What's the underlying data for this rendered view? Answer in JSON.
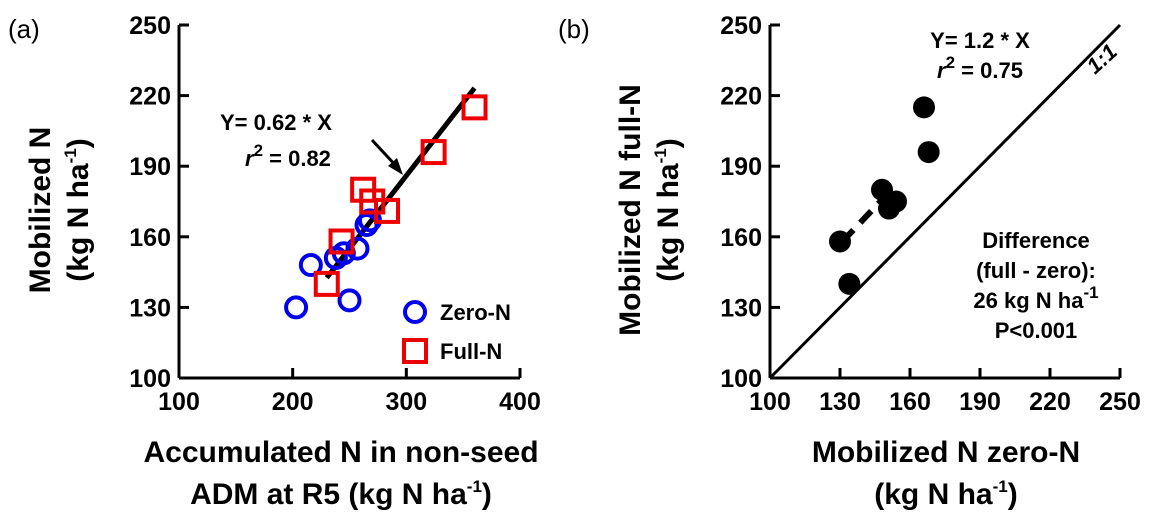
{
  "chart_data": [
    {
      "type": "scatter",
      "panel_label": "(a)",
      "xlabel_line1": "Accumulated N in non-seed",
      "xlabel_line2_pre": "ADM at R5 (kg N ha",
      "xlabel_line2_sup": "-1",
      "xlabel_line2_post": ")",
      "ylabel_line1": "Mobilized N",
      "ylabel_line2_pre": "(kg N ha",
      "ylabel_line2_sup": "-1",
      "ylabel_line2_post": ")",
      "xlim": [
        100,
        400
      ],
      "ylim": [
        100,
        250
      ],
      "xticks": [
        "100",
        "200",
        "300",
        "400"
      ],
      "yticks": [
        "100",
        "130",
        "160",
        "190",
        "220",
        "250"
      ],
      "series": [
        {
          "name": "Zero-N",
          "marker": "open-circle",
          "color": "#0000ee",
          "x": [
            203,
            216,
            238,
            245,
            250,
            257,
            265,
            268
          ],
          "y": [
            130,
            148,
            151,
            153,
            133,
            155,
            165,
            167
          ]
        },
        {
          "name": "Full-N",
          "marker": "open-square",
          "color": "#ee0000",
          "x": [
            230,
            243,
            262,
            270,
            283,
            324,
            360
          ],
          "y": [
            140,
            158,
            180,
            175,
            171,
            196,
            215
          ]
        }
      ],
      "fit_line": {
        "slope": 0.62,
        "x_range": [
          230,
          360
        ],
        "color": "#000000"
      },
      "equation_pre": "Y= 0.62 * X",
      "r2_r": "r",
      "r2_sup": "2",
      "r2_value": " = 0.82",
      "legend_position": "bottom-right"
    },
    {
      "type": "scatter",
      "panel_label": "(b)",
      "xlabel_line1": "Mobilized N zero-N",
      "xlabel_line2_pre": "(kg N ha",
      "xlabel_line2_sup": "-1",
      "xlabel_line2_post": ")",
      "ylabel_line1": "Mobilized N full-N",
      "ylabel_line2_pre": "(kg N ha",
      "ylabel_line2_sup": "-1",
      "ylabel_line2_post": ")",
      "xlim": [
        100,
        250
      ],
      "ylim": [
        100,
        250
      ],
      "xticks": [
        "100",
        "130",
        "160",
        "190",
        "220",
        "250"
      ],
      "yticks": [
        "100",
        "130",
        "160",
        "190",
        "220",
        "250"
      ],
      "points": {
        "color": "#000000",
        "x": [
          130,
          134,
          148,
          151,
          154,
          166,
          168
        ],
        "y": [
          158,
          140,
          180,
          172,
          175,
          215,
          196
        ]
      },
      "fit_line": {
        "slope": 1.2,
        "x_range": [
          131,
          154
        ],
        "style": "dashed"
      },
      "one_to_one_label": "1:1",
      "equation": "Y= 1.2 * X",
      "r2_r": "r",
      "r2_sup": "2",
      "r2_value": " = 0.75",
      "difference_lines": [
        "Difference",
        "(full - zero):"
      ],
      "difference_value_pre": "26 kg N ha",
      "difference_value_sup": "-1",
      "difference_p": "P<0.001"
    }
  ]
}
